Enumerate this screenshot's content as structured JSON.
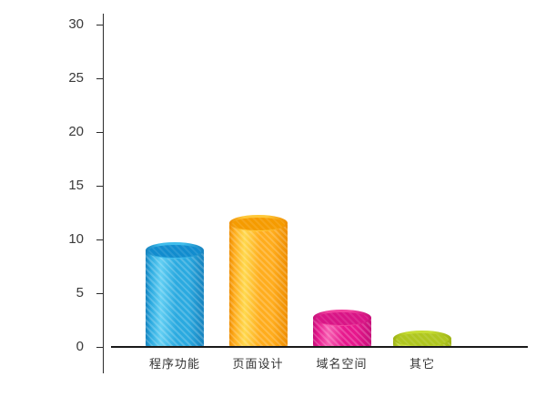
{
  "chart_data": {
    "type": "bar",
    "subtype": "3d-cylinder",
    "title": "",
    "xlabel": "",
    "ylabel": "",
    "categories": [
      "程序功能",
      "页面设计",
      "域名空间",
      "其它"
    ],
    "values": [
      9,
      11.5,
      2.7,
      0.8
    ],
    "ylim": [
      0,
      30
    ],
    "y_ticks": [
      0,
      5,
      10,
      15,
      20,
      25,
      30
    ],
    "grid": false,
    "legend": false,
    "background": "#FFFFFF",
    "axis_color": "#2B2B2B",
    "label_color": "#3A3A3A",
    "bar_colors": [
      {
        "name": "blue",
        "light": "#63CFF3",
        "base": "#2BAAE0",
        "dark": "#1682BE",
        "top": "#118CCE",
        "rim": "#3FBDEC"
      },
      {
        "name": "orange",
        "light": "#FFD94F",
        "base": "#FFAD1E",
        "dark": "#EE8D00",
        "top": "#F59B00",
        "rim": "#FFC839"
      },
      {
        "name": "magenta",
        "light": "#F75FB2",
        "base": "#E7188D",
        "dark": "#C60E79",
        "top": "#D91486",
        "rim": "#F2429F"
      },
      {
        "name": "green",
        "light": "#D6E95A",
        "base": "#BCD32B",
        "dark": "#9DB214",
        "top": "#AFC61F",
        "rim": "#C6DC33"
      }
    ]
  }
}
